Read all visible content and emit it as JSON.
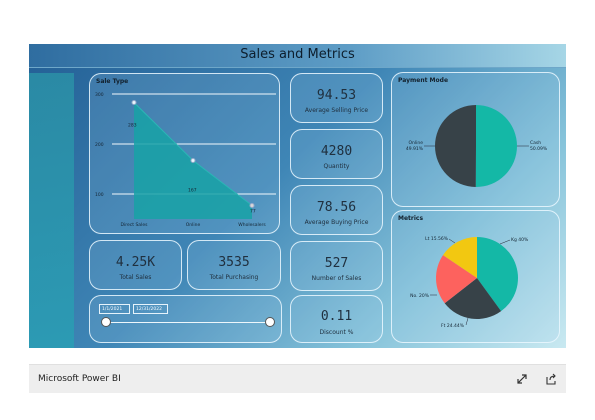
{
  "dashboard": {
    "title": "Sales and Metrics"
  },
  "kpis": {
    "avg_selling_price": {
      "value": "94.53",
      "label": "Average Selling Price"
    },
    "quantity": {
      "value": "4280",
      "label": "Quantity"
    },
    "avg_buying_price": {
      "value": "78.56",
      "label": "Average Buying Price"
    },
    "total_sales": {
      "value": "4.25K",
      "label": "Total Sales"
    },
    "total_purchasing": {
      "value": "3535",
      "label": "Total Purchasing"
    },
    "number_of_sales": {
      "value": "527",
      "label": "Number of Sales"
    },
    "discount": {
      "value": "0.11",
      "label": "Discount %"
    }
  },
  "slicer": {
    "start_date": "1/1/2021",
    "end_date": "12/31/2022"
  },
  "footer": {
    "brand": "Microsoft Power BI"
  },
  "icons": {
    "expand": "expand-icon",
    "share": "share-icon"
  },
  "colors": {
    "teal": "#14b8a6",
    "dark": "#374248",
    "yellow": "#f2c811",
    "red": "#fd625e"
  },
  "chart_data": [
    {
      "type": "area",
      "title": "Sale Type",
      "categories": [
        "Direct Sales",
        "Online",
        "Wholesalers"
      ],
      "values": [
        283,
        167,
        77
      ],
      "ylim": [
        50,
        300
      ],
      "yticks": [
        100,
        200,
        300
      ],
      "grid": true
    },
    {
      "type": "pie",
      "title": "Payment Mode",
      "labels": [
        "Cash",
        "Online"
      ],
      "values": [
        50.09,
        49.91
      ],
      "value_labels": [
        "50.09%",
        "49.91%"
      ]
    },
    {
      "type": "pie",
      "title": "Metrics",
      "labels": [
        "Kg",
        "Ft",
        "No.",
        "Lt"
      ],
      "values": [
        40,
        24.44,
        20,
        15.56
      ],
      "value_labels": [
        "40%",
        "24.44%",
        "20%",
        "15.56%"
      ]
    }
  ]
}
